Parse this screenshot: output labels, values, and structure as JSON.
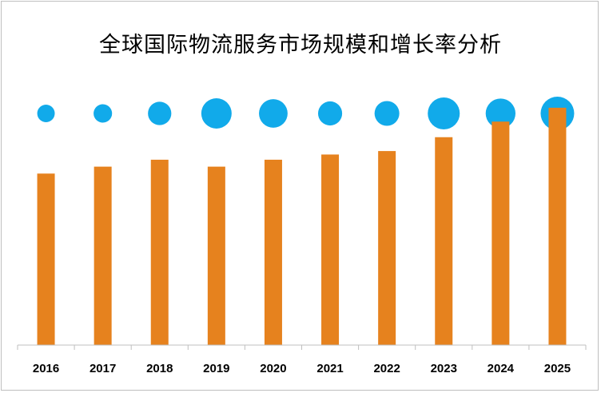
{
  "chart_data": {
    "type": "bar",
    "title": "全球国际物流服务市场规模和增长率分析",
    "categories": [
      "2016",
      "2017",
      "2018",
      "2019",
      "2020",
      "2021",
      "2022",
      "2023",
      "2024",
      "2025"
    ],
    "series": [
      {
        "type": "bar",
        "values": [
          9.9,
          10.3,
          10.7,
          10.3,
          10.7,
          11.0,
          11.2,
          12.0,
          12.9,
          13.7
        ],
        "color": "#e6821e"
      },
      {
        "type": "bubble",
        "values": [
          0.9,
          1.0,
          1.6,
          2.7,
          2.4,
          1.7,
          1.8,
          3.0,
          2.6,
          3.3
        ],
        "color": "#11aaea"
      }
    ],
    "ylim": [
      0,
      16
    ],
    "grid": false,
    "legend": "none",
    "axis_color": "#bfbfbf"
  }
}
